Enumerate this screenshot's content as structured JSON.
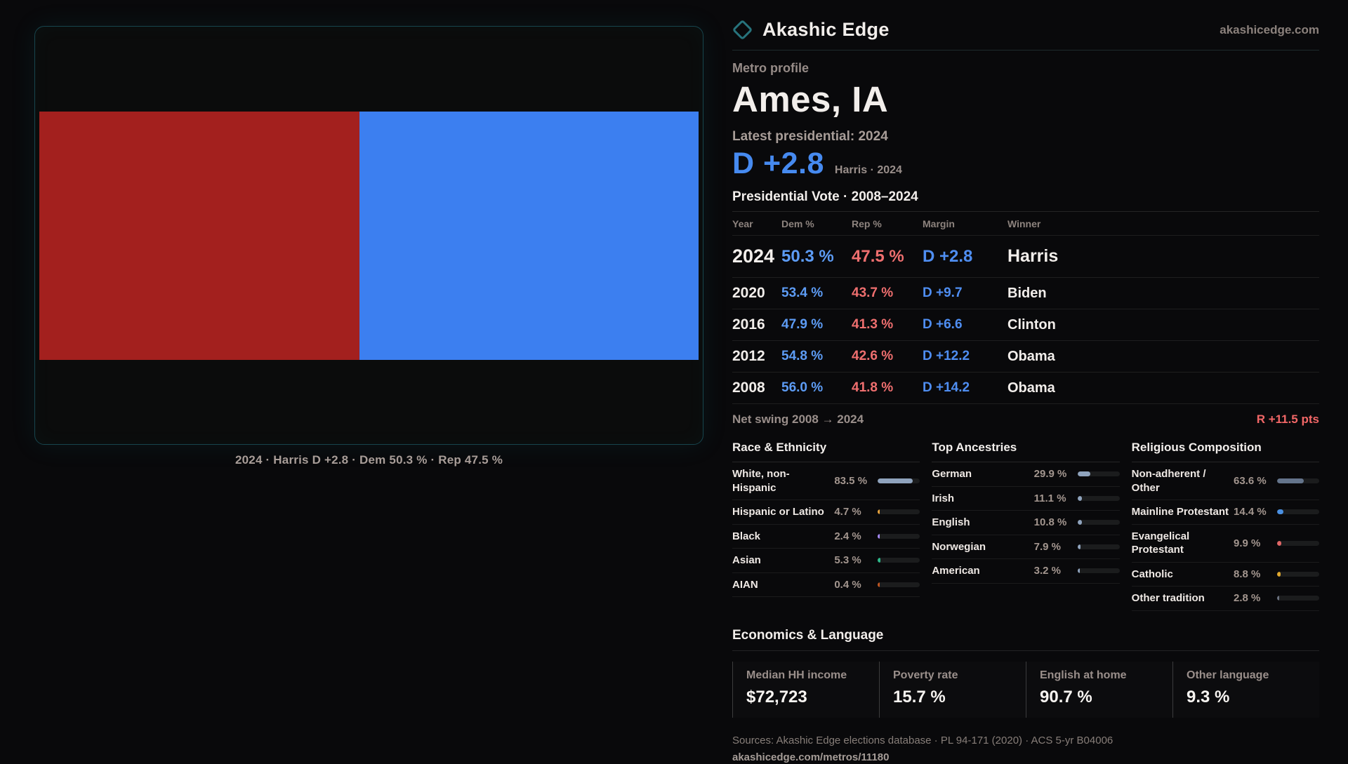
{
  "brand": {
    "name": "Akashic Edge",
    "domain": "akashicedge.com",
    "accent_teal": "#27737c"
  },
  "profile": {
    "eyebrow": "Metro profile",
    "title": "Ames, IA",
    "latest_label": "Latest presidential: 2024",
    "hero_margin": "D +2.8",
    "hero_caption": "Harris · 2024"
  },
  "vote_chart": {
    "caption": "2024 · Harris D +2.8 · Dem 50.3 % · Rep 47.5 %",
    "rep_color": "#a3201e",
    "dem_color": "#3c7ff0",
    "rep_width_pct": 48.6,
    "dem_width_pct": 51.4
  },
  "chart_data": {
    "type": "bar",
    "title": "2024 · Harris D +2.8",
    "categories": [
      "2024"
    ],
    "series": [
      {
        "name": "Rep %",
        "values": [
          47.5
        ],
        "color": "#a3201e"
      },
      {
        "name": "Dem %",
        "values": [
          50.3
        ],
        "color": "#3c7ff0"
      }
    ],
    "layout": "horizontal-split",
    "caption": "2024 · Harris D +2.8 · Dem 50.3 % · Rep 47.5 %"
  },
  "vote_table": {
    "title": "Presidential Vote · 2008–2024",
    "columns": {
      "year": "Year",
      "dem": "Dem %",
      "rep": "Rep %",
      "margin": "Margin",
      "winner": "Winner"
    },
    "rows": [
      {
        "year": "2024",
        "dem": "50.3 %",
        "rep": "47.5 %",
        "margin": "D +2.8",
        "winner": "Harris",
        "cls": "vt-featured"
      },
      {
        "year": "2020",
        "dem": "53.4 %",
        "rep": "43.7 %",
        "margin": "D +9.7",
        "winner": "Biden",
        "cls": ""
      },
      {
        "year": "2016",
        "dem": "47.9 %",
        "rep": "41.3 %",
        "margin": "D +6.6",
        "winner": "Clinton",
        "cls": ""
      },
      {
        "year": "2012",
        "dem": "54.8 %",
        "rep": "42.6 %",
        "margin": "D +12.2",
        "winner": "Obama",
        "cls": ""
      },
      {
        "year": "2008",
        "dem": "56.0 %",
        "rep": "41.8 %",
        "margin": "D +14.2",
        "winner": "Obama",
        "cls": ""
      }
    ],
    "dem_color": "#5d9cf5",
    "rep_color": "#ef6f6f",
    "margin_color": "#4f8ef2"
  },
  "net_swing": {
    "label": "Net swing 2008 → 2024",
    "value": "R +11.5 pts",
    "value_color": "#f26767"
  },
  "race": {
    "title": "Race & Ethnicity",
    "rows": [
      {
        "label": "White, non-Hispanic",
        "value": "83.5 %",
        "pct": 83.5,
        "color": "#8fa3bd"
      },
      {
        "label": "Hispanic or Latino",
        "value": "4.7 %",
        "pct": 4.7,
        "color": "#e8a33d"
      },
      {
        "label": "Black",
        "value": "2.4 %",
        "pct": 2.4,
        "color": "#a78bfa"
      },
      {
        "label": "Asian",
        "value": "5.3 %",
        "pct": 5.3,
        "color": "#2eb88a"
      },
      {
        "label": "AIAN",
        "value": "0.4 %",
        "pct": 0.4,
        "color": "#c05621"
      }
    ]
  },
  "ancestries": {
    "title": "Top Ancestries",
    "rows": [
      {
        "label": "German",
        "value": "29.9 %",
        "pct": 29.9,
        "color": "#8fa3bd"
      },
      {
        "label": "Irish",
        "value": "11.1 %",
        "pct": 11.1,
        "color": "#8fa3bd"
      },
      {
        "label": "English",
        "value": "10.8 %",
        "pct": 10.8,
        "color": "#8fa3bd"
      },
      {
        "label": "Norwegian",
        "value": "7.9 %",
        "pct": 7.9,
        "color": "#8fa3bd"
      },
      {
        "label": "American",
        "value": "3.2 %",
        "pct": 3.2,
        "color": "#8fa3bd"
      }
    ]
  },
  "religion": {
    "title": "Religious Composition",
    "rows": [
      {
        "label": "Non-adherent / Other",
        "value": "63.6 %",
        "pct": 63.6,
        "color": "#64748b"
      },
      {
        "label": "Mainline Protestant",
        "value": "14.4 %",
        "pct": 14.4,
        "color": "#4a90e2"
      },
      {
        "label": "Evangelical Protestant",
        "value": "9.9 %",
        "pct": 9.9,
        "color": "#e06666"
      },
      {
        "label": "Catholic",
        "value": "8.8 %",
        "pct": 8.8,
        "color": "#e0a82e"
      },
      {
        "label": "Other tradition",
        "value": "2.8 %",
        "pct": 2.8,
        "color": "#6b7280"
      }
    ]
  },
  "economics": {
    "title": "Economics & Language",
    "stats": [
      {
        "label": "Median HH income",
        "value": "$72,723"
      },
      {
        "label": "Poverty rate",
        "value": "15.7 %"
      },
      {
        "label": "English at home",
        "value": "90.7 %"
      },
      {
        "label": "Other language",
        "value": "9.3 %"
      }
    ]
  },
  "footer": {
    "sources": "Sources: Akashic Edge elections database · PL 94-171 (2020) · ACS 5-yr B04006",
    "permalink": "akashicedge.com/metros/11180"
  }
}
